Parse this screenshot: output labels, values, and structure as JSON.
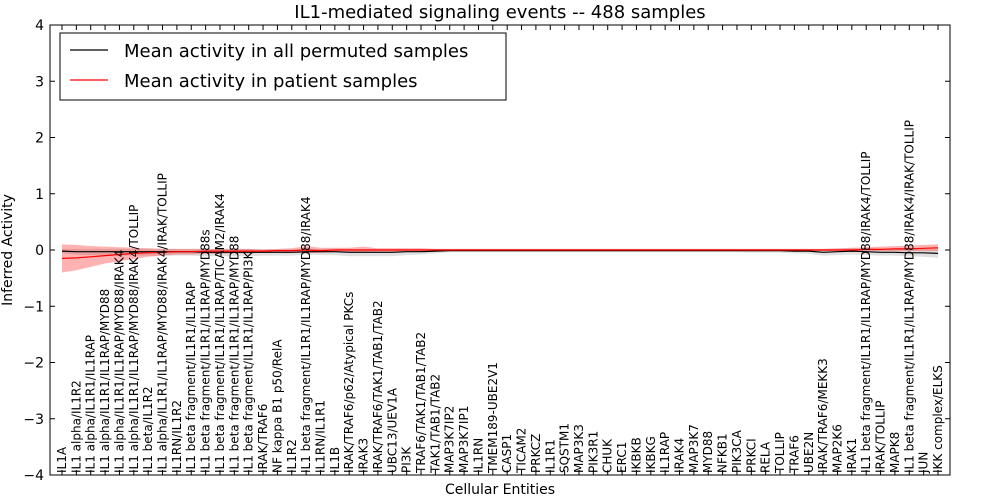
{
  "chart_data": {
    "type": "line",
    "title": "IL1-mediated signaling events -- 488 samples",
    "xlabel": "Cellular Entities",
    "ylabel": "Inferred Activity",
    "ylim": [
      -4,
      4
    ],
    "yticks": [
      -4,
      -3,
      -2,
      -1,
      0,
      1,
      2,
      3,
      4
    ],
    "ytick_labels": [
      "−4",
      "−3",
      "−2",
      "−1",
      "0",
      "1",
      "2",
      "3",
      "4"
    ],
    "grid": false,
    "legend_position": "top-left",
    "categories": [
      "IL1A",
      "IL1 alpha/IL1R2",
      "IL1 alpha/IL1R1/IL1RAP",
      "IL1 alpha/IL1R1/IL1RAP/MYD88",
      "IL1 alpha/IL1R1/IL1RAP/MYD88/IRAK4",
      "IL1 alpha/IL1R1/IL1RAP/MYD88/IRAK4/TOLLIP",
      "IL1 beta/IL1R2",
      "IL1 alpha/IL1R1/IL1RAP/MYD88/IRAK4/IRAK/TOLLIP",
      "IL1RN/IL1R2",
      "IL1 beta fragment/IL1R1/IL1RAP",
      "IL1 beta fragment/IL1R1/IL1RAP/MYD88s",
      "IL1 beta fragment/IL1R1/IL1RAP/TICAM2/IRAK4",
      "IL1 beta fragment/IL1R1/IL1RAP/MYD88",
      "IL1 beta fragment/IL1R1/IL1RAP/PI3K",
      "IRAK/TRAF6",
      "NF kappa B1 p50/RelA",
      "IL1R2",
      "IL1 beta fragment/IL1R1/IL1RAP/MYD88/IRAK4",
      "IL1RN/IL1R1",
      "IL1B",
      "IRAK/TRAF6/p62/Atypical PKCs",
      "IRAK3",
      "IRAK/TRAF6/TAK1/TAB1/TAB2",
      "UBC13/UEV1A",
      "PI3K",
      "TRAF6/TAK1/TAB1/TAB2",
      "TAK1/TAB1/TAB2",
      "MAP3K7IP2",
      "MAP3K7IP1",
      "IL1RN",
      "TMEM189-UBE2V1",
      "CASP1",
      "TICAM2",
      "PRKCZ",
      "IL1R1",
      "SQSTM1",
      "MAP3K3",
      "PIK3R1",
      "CHUK",
      "ERC1",
      "IKBKB",
      "IKBKG",
      "IL1RAP",
      "IRAK4",
      "MAP3K7",
      "MYD88",
      "NFKB1",
      "PIK3CA",
      "PRKCI",
      "RELA",
      "TOLLIP",
      "TRAF6",
      "UBE2N",
      "IRAK/TRAF6/MEKK3",
      "MAP2K6",
      "IRAK1",
      "IL1 beta fragment/IL1R1/IL1RAP/MYD88/IRAK4/TOLLIP",
      "IRAK/TOLLIP",
      "MAPK8",
      "IL1 beta fragment/IL1R1/IL1RAP/MYD88/IRAK4/IRAK/TOLLIP",
      "JUN",
      "IKK complex/ELKS"
    ],
    "series": [
      {
        "name": "Mean activity in all permuted samples",
        "color": "#000000",
        "band_color": "#bbbbbb",
        "values": [
          -0.02,
          -0.03,
          -0.03,
          -0.03,
          -0.03,
          -0.03,
          -0.03,
          -0.03,
          -0.03,
          -0.03,
          -0.04,
          -0.04,
          -0.04,
          -0.04,
          -0.04,
          -0.04,
          -0.04,
          -0.03,
          -0.03,
          -0.03,
          -0.04,
          -0.04,
          -0.04,
          -0.04,
          -0.03,
          -0.03,
          -0.02,
          -0.01,
          -0.01,
          -0.01,
          -0.01,
          -0.01,
          -0.01,
          -0.01,
          -0.01,
          -0.01,
          -0.01,
          -0.01,
          -0.01,
          -0.01,
          -0.01,
          -0.01,
          -0.01,
          -0.01,
          -0.01,
          -0.01,
          -0.01,
          -0.01,
          -0.01,
          -0.01,
          -0.01,
          -0.02,
          -0.02,
          -0.04,
          -0.03,
          -0.02,
          -0.03,
          -0.04,
          -0.04,
          -0.05,
          -0.05,
          -0.06
        ],
        "lower": [
          -0.06,
          -0.08,
          -0.09,
          -0.09,
          -0.1,
          -0.1,
          -0.1,
          -0.1,
          -0.1,
          -0.1,
          -0.11,
          -0.11,
          -0.11,
          -0.11,
          -0.1,
          -0.1,
          -0.1,
          -0.08,
          -0.09,
          -0.09,
          -0.11,
          -0.11,
          -0.11,
          -0.11,
          -0.09,
          -0.08,
          -0.06,
          -0.04,
          -0.04,
          -0.04,
          -0.04,
          -0.04,
          -0.04,
          -0.04,
          -0.04,
          -0.04,
          -0.04,
          -0.04,
          -0.04,
          -0.04,
          -0.04,
          -0.04,
          -0.04,
          -0.04,
          -0.04,
          -0.04,
          -0.04,
          -0.04,
          -0.05,
          -0.05,
          -0.05,
          -0.06,
          -0.07,
          -0.1,
          -0.09,
          -0.08,
          -0.09,
          -0.1,
          -0.1,
          -0.11,
          -0.12,
          -0.14
        ],
        "upper": [
          0.02,
          0.02,
          0.02,
          0.02,
          0.02,
          0.02,
          0.02,
          0.02,
          0.02,
          0.02,
          0.02,
          0.02,
          0.02,
          0.02,
          0.01,
          0.01,
          0.01,
          0.02,
          0.02,
          0.02,
          0.02,
          0.02,
          0.02,
          0.02,
          0.02,
          0.02,
          0.02,
          0.02,
          0.02,
          0.02,
          0.02,
          0.02,
          0.02,
          0.02,
          0.02,
          0.02,
          0.02,
          0.02,
          0.02,
          0.02,
          0.02,
          0.02,
          0.02,
          0.02,
          0.02,
          0.02,
          0.02,
          0.02,
          0.02,
          0.02,
          0.02,
          0.02,
          0.02,
          0.02,
          0.02,
          0.03,
          0.03,
          0.02,
          0.02,
          0.02,
          0.02,
          0.02
        ]
      },
      {
        "name": "Mean activity in patient samples",
        "color": "#ff0000",
        "band_color": "#ff0000",
        "values": [
          -0.15,
          -0.14,
          -0.12,
          -0.1,
          -0.08,
          -0.06,
          -0.05,
          -0.04,
          -0.03,
          -0.03,
          -0.02,
          -0.02,
          -0.02,
          -0.02,
          -0.02,
          -0.01,
          -0.01,
          0.0,
          -0.01,
          0.0,
          0.0,
          0.0,
          0.0,
          0.0,
          0.0,
          0.0,
          0.0,
          0.0,
          0.0,
          0.0,
          0.0,
          0.0,
          0.0,
          0.0,
          0.0,
          0.0,
          0.0,
          0.0,
          0.0,
          0.0,
          0.0,
          0.0,
          0.0,
          0.0,
          0.0,
          0.0,
          0.0,
          0.0,
          0.0,
          0.0,
          0.0,
          0.0,
          0.0,
          0.0,
          0.0,
          0.0,
          0.01,
          0.01,
          0.02,
          0.02,
          0.03,
          0.04
        ],
        "lower": [
          -0.4,
          -0.36,
          -0.3,
          -0.24,
          -0.2,
          -0.16,
          -0.12,
          -0.1,
          -0.08,
          -0.08,
          -0.07,
          -0.07,
          -0.06,
          -0.06,
          -0.05,
          -0.04,
          -0.05,
          -0.06,
          -0.05,
          -0.04,
          -0.04,
          -0.04,
          -0.03,
          -0.03,
          -0.02,
          -0.02,
          -0.02,
          -0.02,
          -0.02,
          -0.02,
          -0.02,
          -0.02,
          -0.02,
          -0.02,
          -0.02,
          -0.02,
          -0.02,
          -0.02,
          -0.02,
          -0.02,
          -0.02,
          -0.02,
          -0.02,
          -0.02,
          -0.02,
          -0.02,
          -0.02,
          -0.02,
          -0.02,
          -0.02,
          -0.02,
          -0.02,
          -0.02,
          -0.02,
          -0.02,
          -0.02,
          -0.02,
          -0.02,
          -0.02,
          -0.02,
          -0.02,
          -0.02
        ],
        "upper": [
          0.1,
          0.09,
          0.07,
          0.06,
          0.05,
          0.04,
          0.03,
          0.02,
          0.02,
          0.02,
          0.02,
          0.02,
          0.02,
          0.02,
          0.01,
          0.02,
          0.03,
          0.07,
          0.04,
          0.04,
          0.04,
          0.06,
          0.03,
          0.03,
          0.03,
          0.03,
          0.02,
          0.02,
          0.02,
          0.02,
          0.02,
          0.02,
          0.02,
          0.02,
          0.02,
          0.02,
          0.02,
          0.02,
          0.02,
          0.02,
          0.02,
          0.02,
          0.02,
          0.02,
          0.02,
          0.02,
          0.02,
          0.02,
          0.02,
          0.02,
          0.02,
          0.02,
          0.02,
          0.02,
          0.03,
          0.04,
          0.05,
          0.06,
          0.07,
          0.08,
          0.09,
          0.1
        ]
      }
    ]
  }
}
